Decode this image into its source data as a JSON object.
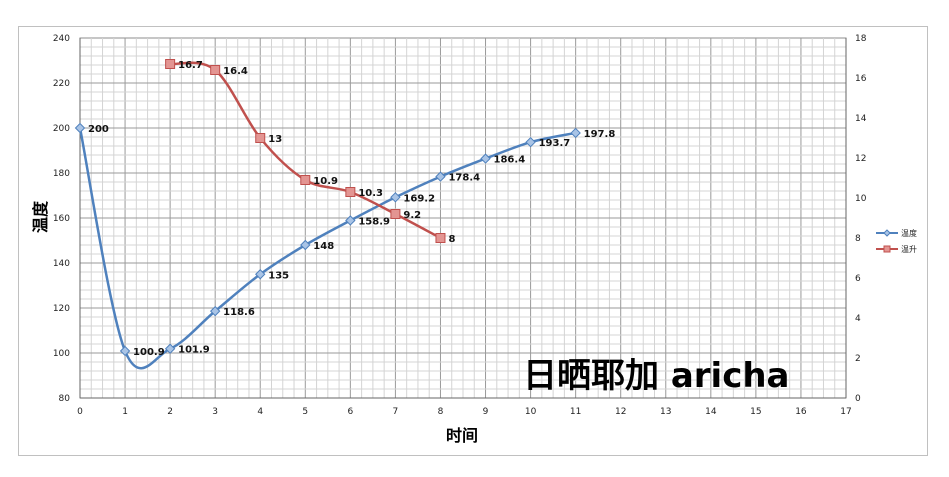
{
  "chart_data": {
    "type": "line",
    "xlabel": "时间",
    "ylabel": "温度",
    "xlim": [
      0,
      17
    ],
    "ylim": [
      80,
      240
    ],
    "y2lim": [
      0,
      18
    ],
    "xticks": [
      0,
      1,
      2,
      3,
      4,
      5,
      6,
      7,
      8,
      9,
      10,
      11,
      12,
      13,
      14,
      15,
      16,
      17
    ],
    "yticks": [
      80,
      100,
      120,
      140,
      160,
      180,
      200,
      220,
      240
    ],
    "y2ticks": [
      0,
      2,
      4,
      6,
      8,
      10,
      12,
      14,
      16,
      18
    ],
    "grid": true,
    "legend_position": "right",
    "series": [
      {
        "name": "温度",
        "axis": "left",
        "color": "#4F81BD",
        "marker": "diamond",
        "x": [
          0,
          1,
          2,
          3,
          4,
          5,
          6,
          7,
          8,
          9,
          10,
          11
        ],
        "values": [
          200,
          100.9,
          101.9,
          118.6,
          135,
          148,
          158.9,
          169.2,
          178.4,
          186.4,
          193.7,
          197.8
        ],
        "labels": [
          "200",
          "100.9",
          "101.9",
          "118.6",
          "135",
          "148",
          "158.9",
          "169.2",
          "178.4",
          "186.4",
          "193.7",
          "197.8"
        ]
      },
      {
        "name": "温升",
        "axis": "right",
        "color": "#C0504D",
        "marker": "square",
        "x": [
          2,
          3,
          4,
          5,
          6,
          7,
          8
        ],
        "values": [
          16.7,
          16.4,
          13,
          10.9,
          10.3,
          9.2,
          8
        ],
        "labels": [
          "16.7",
          "16.4",
          "13",
          "10.9",
          "10.3",
          "9.2",
          "8"
        ]
      }
    ],
    "watermark": "日晒耶加  aricha"
  }
}
